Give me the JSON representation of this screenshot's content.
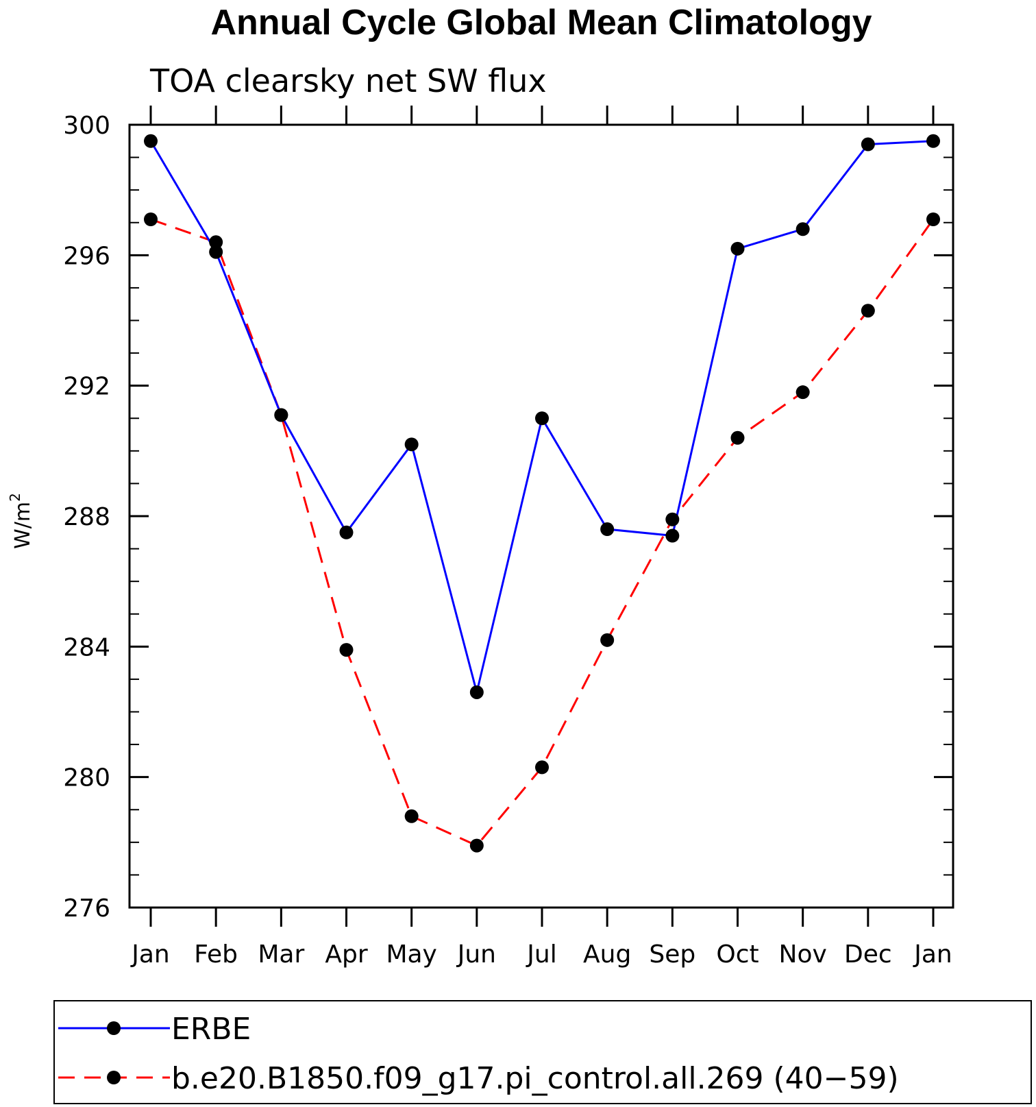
{
  "chart_data": {
    "type": "line",
    "title": "Annual Cycle Global Mean Climatology",
    "subtitle": "TOA clearsky net SW flux",
    "xlabel": "",
    "ylabel": "W/m",
    "ylabel_superscript": "2",
    "categories": [
      "Jan",
      "Feb",
      "Mar",
      "Apr",
      "May",
      "Jun",
      "Jul",
      "Aug",
      "Sep",
      "Oct",
      "Nov",
      "Dec",
      "Jan"
    ],
    "ylim": [
      276,
      300
    ],
    "yticks": [
      276,
      280,
      284,
      288,
      292,
      296,
      300
    ],
    "y_minor_step": 1,
    "legend_placement": "bottom",
    "series": [
      {
        "name": "ERBE",
        "color": "#0000ff",
        "dash": "solid",
        "marker": "filled-circle",
        "values": [
          299.5,
          296.1,
          291.1,
          287.5,
          290.2,
          282.6,
          291.0,
          287.6,
          287.4,
          296.2,
          296.8,
          299.4,
          299.5
        ]
      },
      {
        "name": "b.e20.B1850.f09_g17.pi_control.all.269 (40−59)",
        "color": "#ff0000",
        "dash": "dashed",
        "marker": "filled-circle",
        "values": [
          297.1,
          296.4,
          291.1,
          283.9,
          278.8,
          277.9,
          280.3,
          284.2,
          287.9,
          290.4,
          291.8,
          294.3,
          297.1
        ]
      }
    ]
  }
}
